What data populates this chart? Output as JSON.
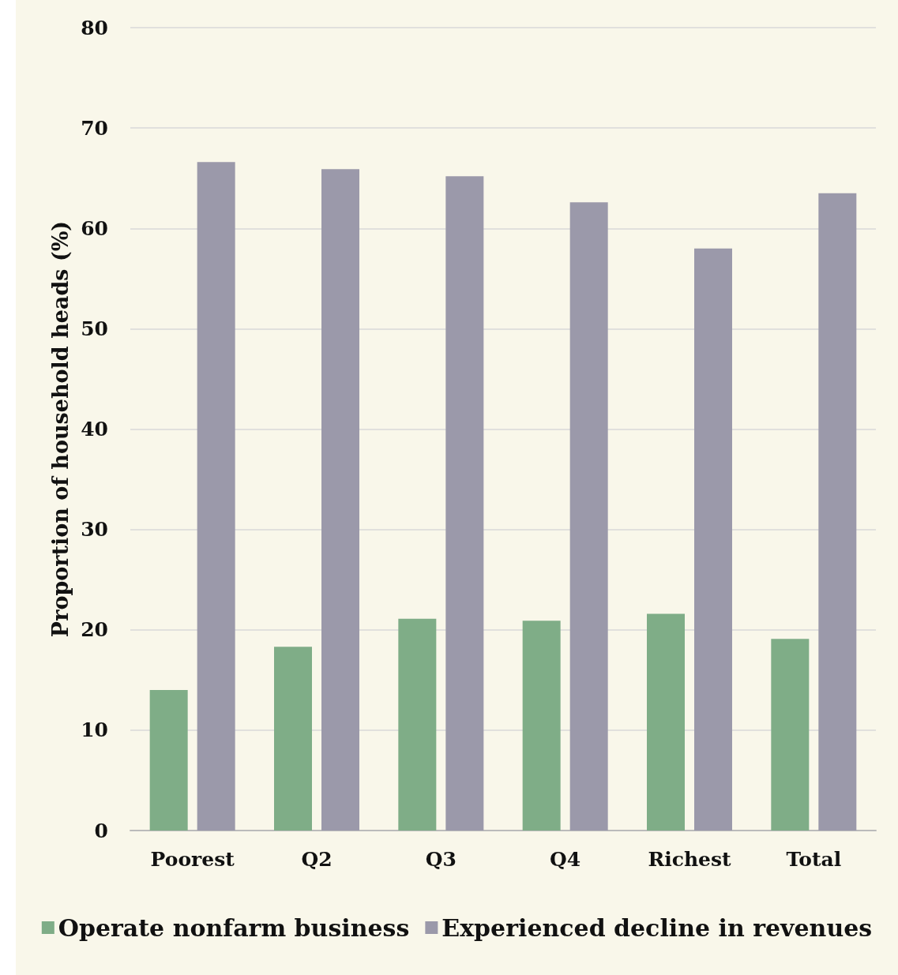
{
  "chart_data": {
    "type": "bar",
    "ylabel": "Proportion of household heads (%)",
    "categories": [
      "Poorest",
      "Q2",
      "Q3",
      "Q4",
      "Richest",
      "Total"
    ],
    "series": [
      {
        "name": "Operate nonfarm business",
        "color": "#7fad87",
        "values": [
          14.0,
          18.3,
          21.1,
          20.9,
          21.6,
          19.1
        ]
      },
      {
        "name": "Experienced decline in revenues",
        "color": "#9b99aa",
        "values": [
          66.6,
          65.9,
          65.2,
          62.6,
          58.0,
          63.5
        ]
      }
    ],
    "ylim": [
      0,
      80
    ],
    "yticks": [
      0,
      10,
      20,
      30,
      40,
      50,
      60,
      70,
      80
    ],
    "grid": "y",
    "legend": "bottom"
  }
}
